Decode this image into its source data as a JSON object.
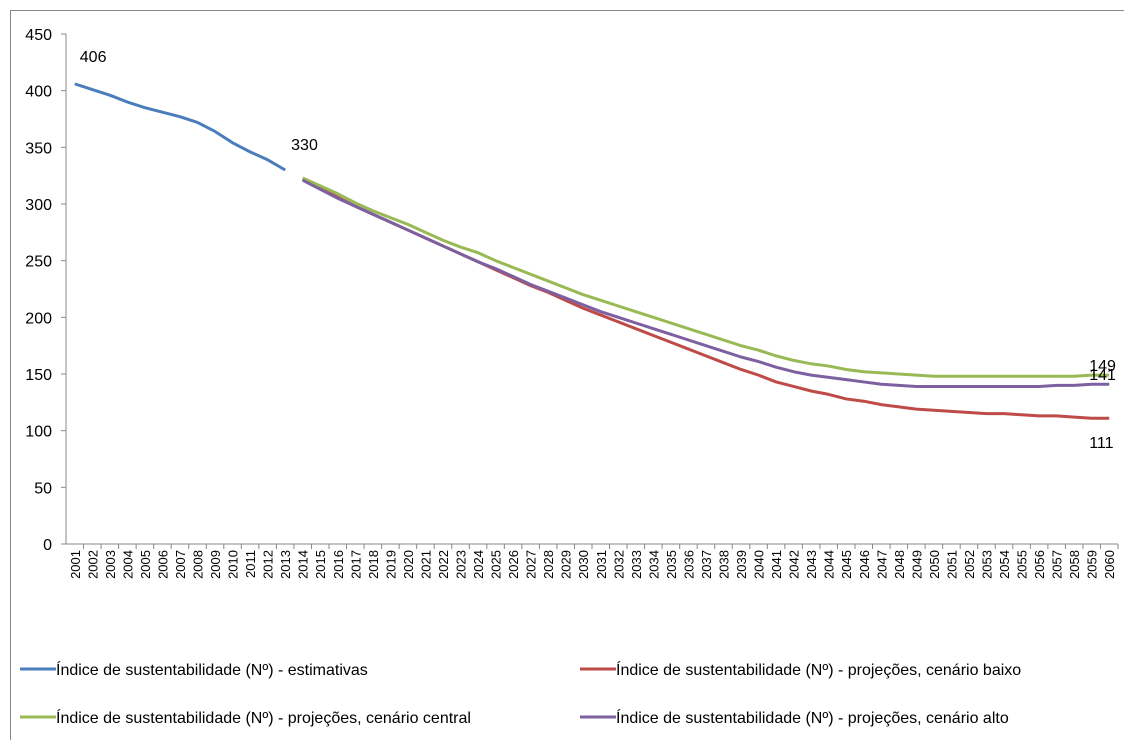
{
  "chart_data": {
    "type": "line",
    "categories": [
      "2001",
      "2002",
      "2003",
      "2004",
      "2005",
      "2006",
      "2007",
      "2008",
      "2009",
      "2010",
      "2011",
      "2012",
      "2013",
      "2014",
      "2015",
      "2016",
      "2017",
      "2018",
      "2019",
      "2020",
      "2021",
      "2022",
      "2023",
      "2024",
      "2025",
      "2026",
      "2027",
      "2028",
      "2029",
      "2030",
      "2031",
      "2032",
      "2033",
      "2034",
      "2035",
      "2036",
      "2037",
      "2038",
      "2039",
      "2040",
      "2041",
      "2042",
      "2043",
      "2044",
      "2045",
      "2046",
      "2047",
      "2048",
      "2049",
      "2050",
      "2051",
      "2052",
      "2053",
      "2054",
      "2055",
      "2056",
      "2057",
      "2058",
      "2059",
      "2060"
    ],
    "series": [
      {
        "name": "Índice de sustentabilidade (Nº) - estimativas",
        "color": "#4a7ebb",
        "values": [
          406,
          401,
          396,
          390,
          385,
          381,
          377,
          372,
          364,
          354,
          346,
          339,
          330,
          null,
          null,
          null,
          null,
          null,
          null,
          null,
          null,
          null,
          null,
          null,
          null,
          null,
          null,
          null,
          null,
          null,
          null,
          null,
          null,
          null,
          null,
          null,
          null,
          null,
          null,
          null,
          null,
          null,
          null,
          null,
          null,
          null,
          null,
          null,
          null,
          null,
          null,
          null,
          null,
          null,
          null,
          null,
          null,
          null,
          null,
          null
        ]
      },
      {
        "name": "Índice de sustentabilidade (Nº) - projeções, cenário baixo",
        "color": "#be4b48",
        "values": [
          null,
          null,
          null,
          null,
          null,
          null,
          null,
          null,
          null,
          null,
          null,
          null,
          null,
          322,
          314,
          306,
          298,
          291,
          284,
          277,
          270,
          263,
          256,
          249,
          242,
          235,
          228,
          222,
          215,
          208,
          202,
          196,
          190,
          184,
          178,
          172,
          166,
          160,
          154,
          149,
          143,
          139,
          135,
          132,
          128,
          126,
          123,
          121,
          119,
          118,
          117,
          116,
          115,
          115,
          114,
          113,
          113,
          112,
          111,
          111
        ]
      },
      {
        "name": "Índice de sustentabilidade (Nº) - projeções, cenário central",
        "color": "#98b954",
        "values": [
          null,
          null,
          null,
          null,
          null,
          null,
          null,
          null,
          null,
          null,
          null,
          null,
          null,
          323,
          316,
          309,
          301,
          294,
          288,
          282,
          275,
          268,
          262,
          257,
          250,
          244,
          238,
          232,
          226,
          220,
          215,
          210,
          205,
          200,
          195,
          190,
          185,
          180,
          175,
          171,
          166,
          162,
          159,
          157,
          154,
          152,
          151,
          150,
          149,
          148,
          148,
          148,
          148,
          148,
          148,
          148,
          148,
          148,
          149,
          149
        ]
      },
      {
        "name": "Índice de sustentabilidade (Nº) - projeções, cenário alto",
        "color": "#7d60a0",
        "values": [
          null,
          null,
          null,
          null,
          null,
          null,
          null,
          null,
          null,
          null,
          null,
          null,
          null,
          321,
          313,
          305,
          298,
          291,
          284,
          277,
          270,
          263,
          256,
          249,
          243,
          236,
          229,
          223,
          217,
          211,
          205,
          200,
          195,
          190,
          185,
          180,
          175,
          170,
          165,
          161,
          156,
          152,
          149,
          147,
          145,
          143,
          141,
          140,
          139,
          139,
          139,
          139,
          139,
          139,
          139,
          139,
          140,
          140,
          141,
          141
        ]
      }
    ],
    "ylim": [
      0,
      450
    ],
    "yticks": [
      0,
      50,
      100,
      150,
      200,
      250,
      300,
      350,
      400,
      450
    ],
    "grid": false
  }
}
